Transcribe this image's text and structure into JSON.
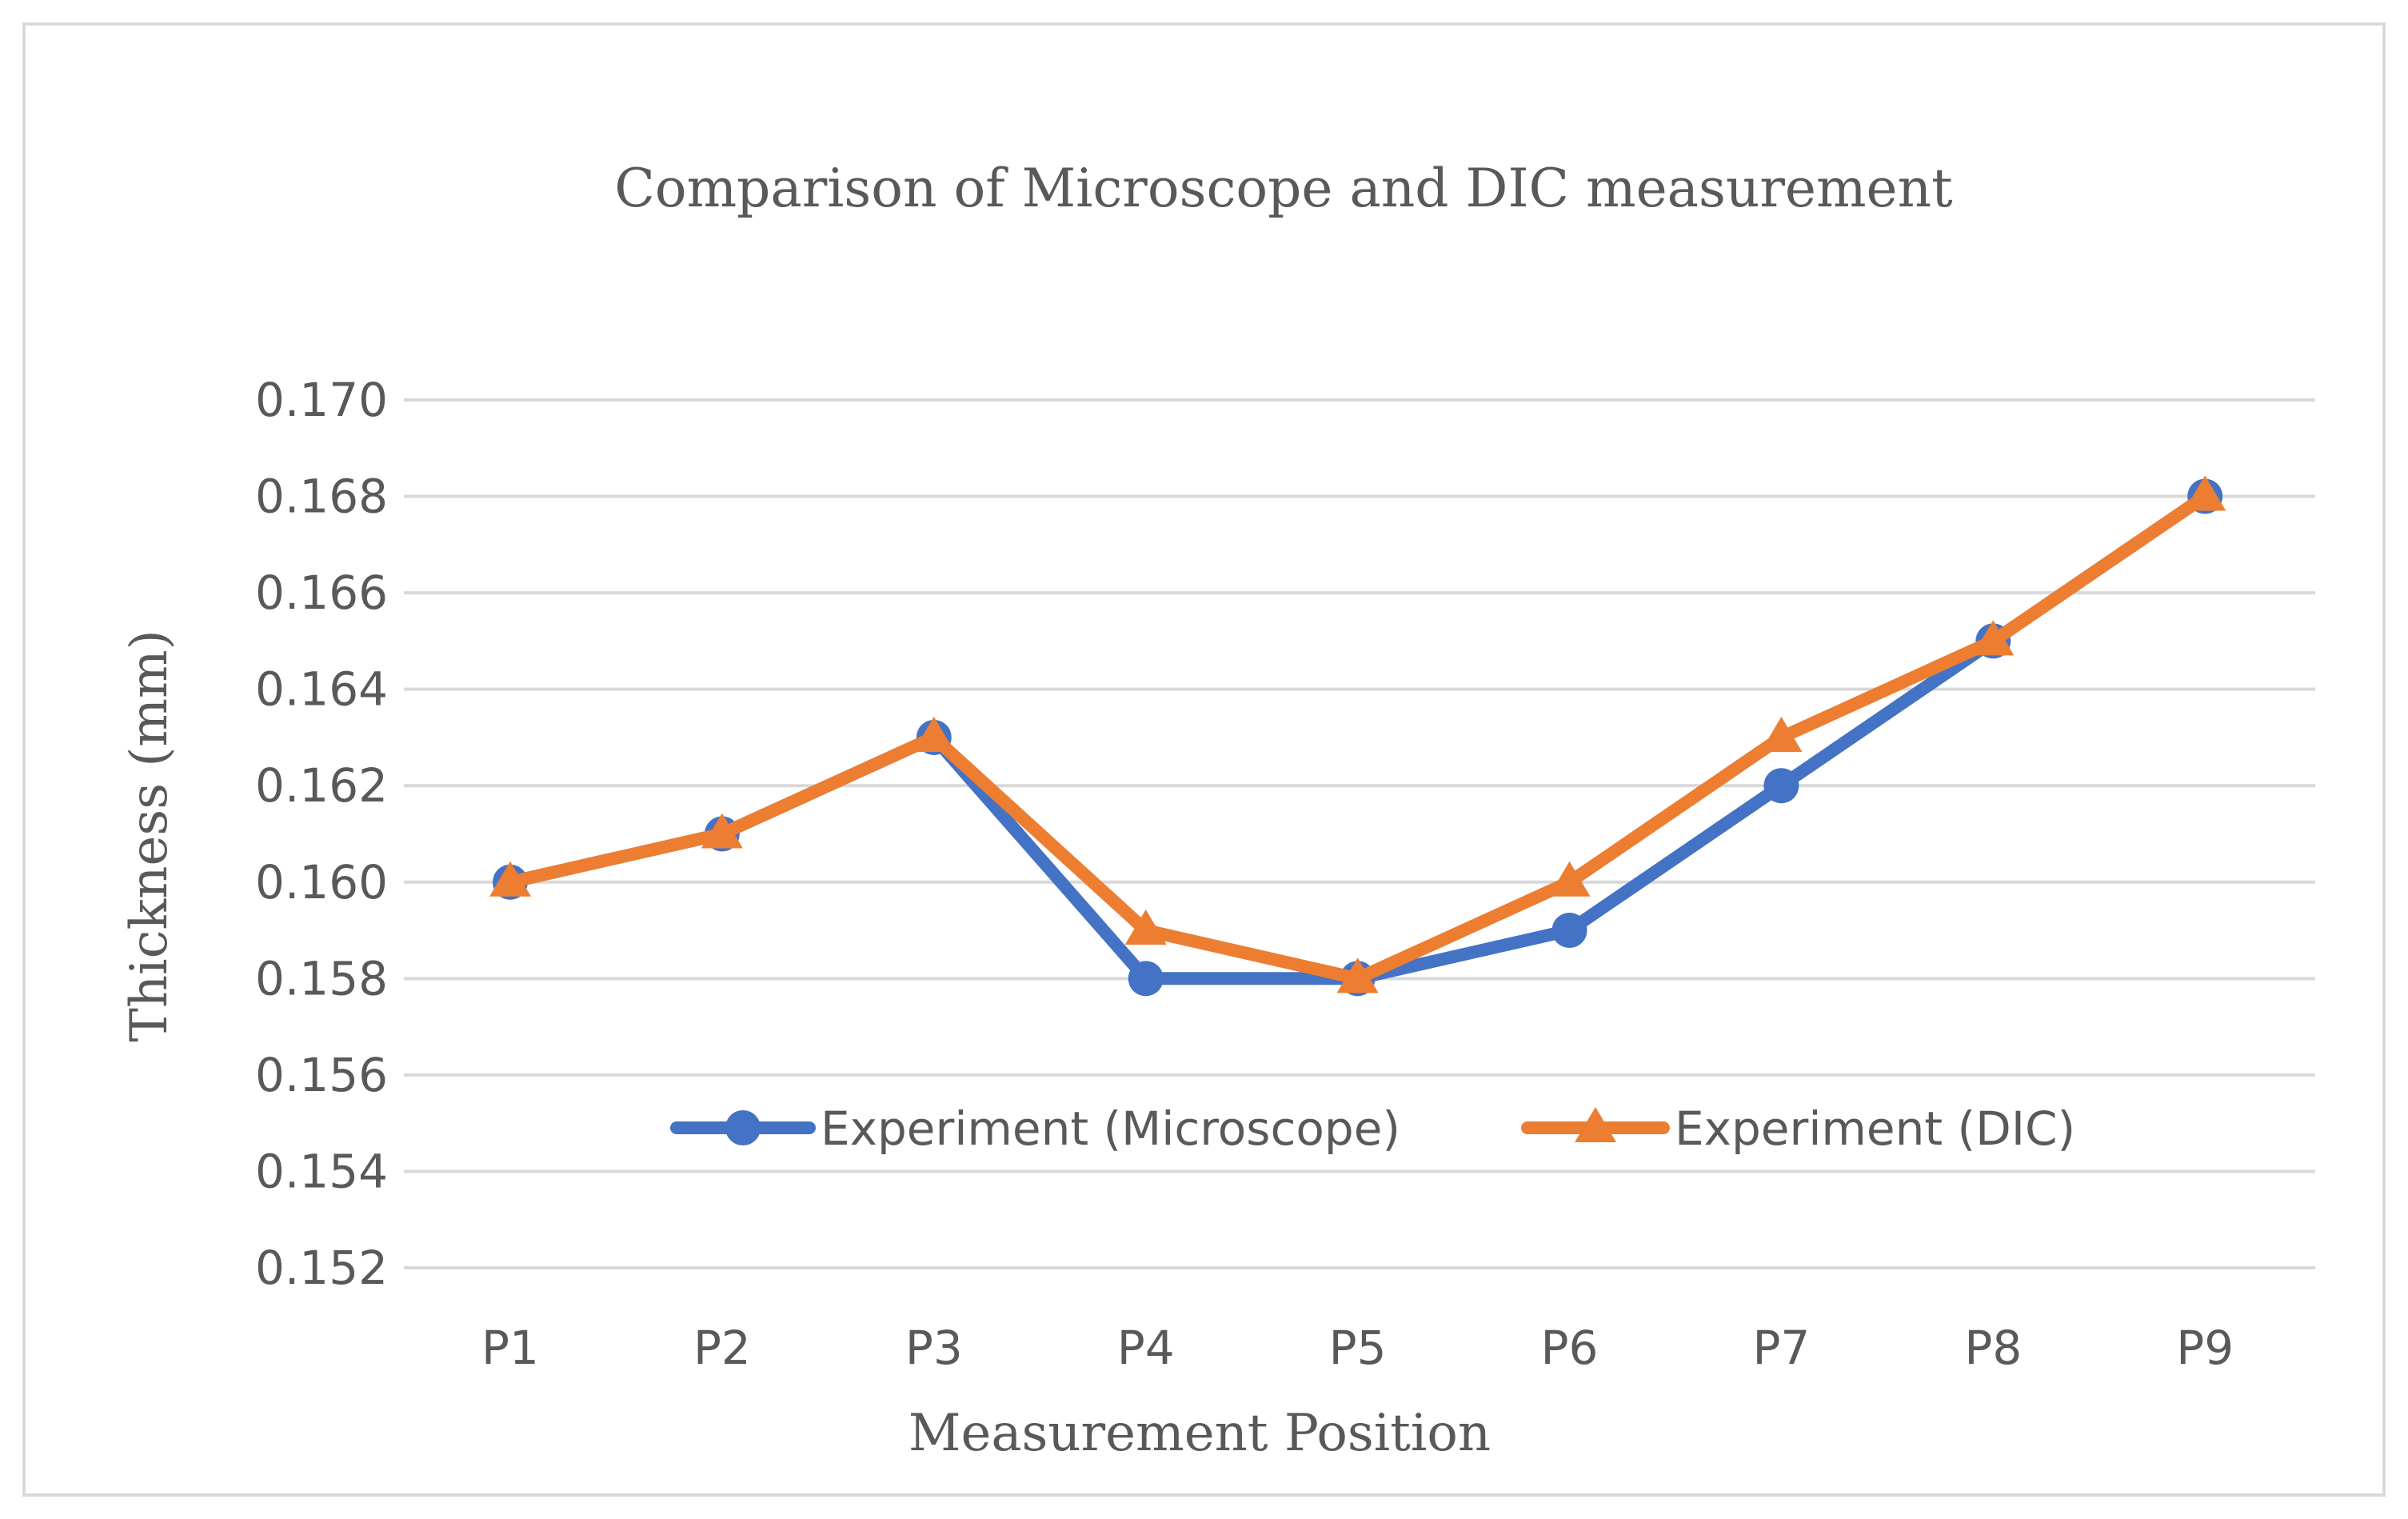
{
  "chart_data": {
    "type": "line",
    "title": "Comparison of Microscope and DIC measurement",
    "xlabel": "Measurement Position",
    "ylabel": "Thickness (mm)",
    "categories": [
      "P1",
      "P2",
      "P3",
      "P4",
      "P5",
      "P6",
      "P7",
      "P8",
      "P9"
    ],
    "ylim": [
      0.152,
      0.17
    ],
    "yticks": [
      "0.152",
      "0.154",
      "0.156",
      "0.158",
      "0.160",
      "0.162",
      "0.164",
      "0.166",
      "0.168",
      "0.170"
    ],
    "grid": true,
    "legend_position": "inside-bottom",
    "series": [
      {
        "name": "Experiment (Microscope)",
        "marker": "circle",
        "color": "#4472C4",
        "values": [
          0.16,
          0.161,
          0.163,
          0.158,
          0.158,
          0.159,
          0.162,
          0.165,
          0.168
        ]
      },
      {
        "name": "Experiment (DIC)",
        "marker": "triangle",
        "color": "#ED7D31",
        "values": [
          0.16,
          0.161,
          0.163,
          0.159,
          0.158,
          0.16,
          0.163,
          0.165,
          0.168
        ]
      }
    ]
  }
}
